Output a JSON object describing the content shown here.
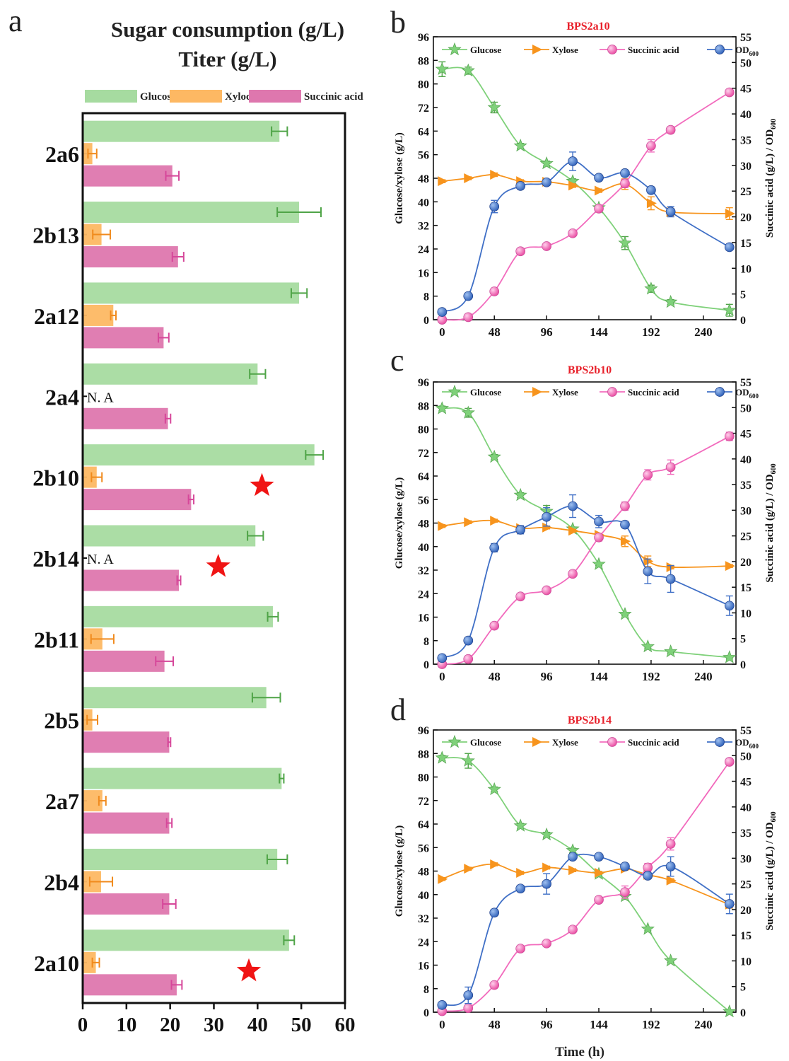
{
  "chart_data": [
    {
      "panel": "a",
      "type": "bar",
      "title_lines": [
        "Sugar consumption (g/L)",
        "Titer (g/L)"
      ],
      "xlim": [
        0,
        60
      ],
      "xticks": [
        0,
        10,
        20,
        30,
        40,
        50,
        60
      ],
      "categories": [
        "2a6",
        "2b13",
        "2a12",
        "2a4",
        "2b10",
        "2b14",
        "2b11",
        "2b5",
        "2a7",
        "2b4",
        "2a10"
      ],
      "series": [
        {
          "name": "Glucose",
          "color": "#a6dba0",
          "values": [
            45,
            49.5,
            49.5,
            40,
            53,
            39.5,
            43.5,
            42,
            45.5,
            44.5,
            47.2
          ],
          "errors": [
            1.8,
            5,
            1.8,
            1.8,
            2,
            1.8,
            1.2,
            3.2,
            0.5,
            2.3,
            1.2
          ]
        },
        {
          "name": "Xyloce",
          "color": "#fdb863",
          "values": [
            2.2,
            4.3,
            7,
            null,
            3.2,
            null,
            4.5,
            2.2,
            4.5,
            4.2,
            3
          ],
          "errors": [
            1,
            2,
            0.6,
            null,
            1.2,
            null,
            2.6,
            1.2,
            0.8,
            2.6,
            0.8
          ]
        },
        {
          "name": "Succinic acid",
          "color": "#de77ae",
          "values": [
            20.5,
            21.8,
            18.5,
            19.5,
            24.8,
            22,
            18.7,
            19.8,
            19.8,
            19.8,
            21.5
          ],
          "errors": [
            1.5,
            1.3,
            1.2,
            0.6,
            0.6,
            0.4,
            2,
            0.3,
            0.6,
            1.5,
            1.2
          ]
        }
      ],
      "na_label": "N. A",
      "na_categories": [
        "2a4",
        "2b14"
      ],
      "stars": [
        {
          "category": "2b10",
          "x": 41
        },
        {
          "category": "2b14",
          "x": 31
        },
        {
          "category": "2a10",
          "x": 38
        }
      ]
    },
    {
      "panel": "b",
      "type": "line",
      "title": "BPS2a10",
      "x": [
        0,
        24,
        48,
        72,
        96,
        120,
        144,
        168,
        192,
        210,
        264
      ],
      "xticks": [
        0,
        48,
        96,
        144,
        192,
        240
      ],
      "xlim": [
        -8,
        270
      ],
      "ylim_left": [
        0,
        96
      ],
      "yticks_left": [
        0,
        8,
        16,
        24,
        32,
        40,
        48,
        56,
        64,
        72,
        80,
        88,
        96
      ],
      "ylim_right": [
        0,
        55
      ],
      "yticks_right": [
        0,
        5,
        10,
        15,
        20,
        25,
        30,
        35,
        40,
        45,
        50,
        55
      ],
      "ylabel_left": "Glucose/xylose (g/L)",
      "ylabel_right_main": "Succinic acid (g/L) / OD",
      "ylabel_right_sub": "600",
      "series": [
        {
          "name": "Glucose",
          "marker": "star",
          "axis": "left",
          "color": "#7fd17a",
          "values": [
            85,
            84.5,
            72,
            59,
            53,
            47,
            38,
            26,
            10.5,
            6,
            3.2
          ],
          "errors": [
            2.5,
            1.2,
            1.8,
            0.8,
            0.8,
            0.8,
            0.6,
            2.2,
            1.2,
            0.8,
            2
          ]
        },
        {
          "name": "Xylose",
          "marker": "triangle",
          "axis": "left",
          "color": "#f7941d",
          "values": [
            47,
            48,
            49.2,
            47,
            46.8,
            45.5,
            43.8,
            46,
            39.5,
            36.5,
            36
          ],
          "errors": [
            0.5,
            0.5,
            0.6,
            0.5,
            0.5,
            0.6,
            0.6,
            1.8,
            2.2,
            1.2,
            2
          ]
        },
        {
          "name": "Succinic acid",
          "marker": "circle",
          "axis": "right",
          "color": "#f26bbd",
          "values": [
            0,
            0.5,
            5.5,
            13.3,
            14.3,
            16.8,
            21.6,
            26.5,
            33.8,
            36.9,
            44.2
          ],
          "errors": [
            0.2,
            0.3,
            0.3,
            0.4,
            0.4,
            0.5,
            0.6,
            0.8,
            1.2,
            0.6,
            0.6
          ]
        },
        {
          "name": "OD",
          "name_sub": "600",
          "marker": "circle",
          "axis": "right",
          "color": "#3f6fc6",
          "values": [
            1.5,
            4.6,
            22,
            26,
            26.7,
            30.8,
            27.6,
            28.5,
            25.2,
            21,
            14.1
          ],
          "errors": [
            0.2,
            0.3,
            1.2,
            0.6,
            0.4,
            1.8,
            0.5,
            0.4,
            0.6,
            1,
            0.4
          ]
        }
      ]
    },
    {
      "panel": "c",
      "type": "line",
      "title": "BPS2b10",
      "x": [
        0,
        24,
        48,
        72,
        96,
        120,
        144,
        168,
        189,
        210,
        264
      ],
      "xticks": [
        0,
        48,
        96,
        144,
        192,
        240
      ],
      "xlim": [
        -8,
        270
      ],
      "ylim_left": [
        0,
        96
      ],
      "yticks_left": [
        0,
        8,
        16,
        24,
        32,
        40,
        48,
        56,
        64,
        72,
        80,
        88,
        96
      ],
      "ylim_right": [
        0,
        55
      ],
      "yticks_right": [
        0,
        5,
        10,
        15,
        20,
        25,
        30,
        35,
        40,
        45,
        50,
        55
      ],
      "ylabel_left": "Glucose/xylose (g/L)",
      "ylabel_right_main": "Succinic acid (g/L) / OD",
      "ylabel_right_sub": "600",
      "series": [
        {
          "name": "Glucose",
          "marker": "star",
          "axis": "left",
          "color": "#7fd17a",
          "values": [
            87,
            85.5,
            70.5,
            57.5,
            52,
            46,
            34,
            17,
            6,
            4.3,
            2.3
          ],
          "errors": [
            0.8,
            1.5,
            0.8,
            0.8,
            2,
            0.5,
            0.5,
            0.5,
            0.5,
            0.5,
            0.5
          ]
        },
        {
          "name": "Xylose",
          "marker": "triangle",
          "axis": "left",
          "color": "#f7941d",
          "values": [
            47,
            48.3,
            48.8,
            46.3,
            46.5,
            45.4,
            44,
            41.8,
            35,
            33,
            33.4
          ],
          "errors": [
            0.5,
            0.5,
            0.5,
            0.5,
            0.5,
            0.5,
            0.5,
            1.8,
            1.8,
            0.6,
            0.5
          ]
        },
        {
          "name": "Succinic acid",
          "marker": "circle",
          "axis": "right",
          "color": "#f26bbd",
          "values": [
            0,
            1,
            7.5,
            13.2,
            14.4,
            17.6,
            24.7,
            30.8,
            36.9,
            38.4,
            44.4
          ],
          "errors": [
            0.2,
            0.3,
            0.4,
            0.4,
            0.4,
            0.5,
            0.7,
            0.8,
            1,
            1.4,
            0.8
          ]
        },
        {
          "name": "OD",
          "name_sub": "600",
          "marker": "circle",
          "axis": "right",
          "color": "#3f6fc6",
          "values": [
            1.2,
            4.6,
            22.7,
            26.2,
            28.7,
            30.8,
            27.8,
            27.2,
            18.1,
            16.6,
            11.4
          ],
          "errors": [
            0.2,
            0.3,
            0.8,
            0.8,
            1.8,
            2.2,
            1.2,
            0.6,
            2.4,
            2.6,
            1.9
          ]
        }
      ]
    },
    {
      "panel": "d",
      "type": "line",
      "title": "BPS2b14",
      "x": [
        0,
        24,
        48,
        72,
        96,
        120,
        144,
        168,
        189,
        210,
        264
      ],
      "xticks": [
        0,
        48,
        96,
        144,
        192,
        240
      ],
      "xlim": [
        -8,
        270
      ],
      "ylim_left": [
        0,
        96
      ],
      "yticks_left": [
        0,
        8,
        16,
        24,
        32,
        40,
        48,
        56,
        64,
        72,
        80,
        88,
        96
      ],
      "ylim_right": [
        0,
        55
      ],
      "yticks_right": [
        0,
        5,
        10,
        15,
        20,
        25,
        30,
        35,
        40,
        45,
        50,
        55
      ],
      "xlabel": "Time (h)",
      "ylabel_left": "Glucose/xylose (g/L)",
      "ylabel_right_main": "Succinic acid (g/L) / OD",
      "ylabel_right_sub": "600",
      "series": [
        {
          "name": "Glucose",
          "marker": "star",
          "axis": "left",
          "color": "#7fd17a",
          "values": [
            86.5,
            85.5,
            75.8,
            63.4,
            60.4,
            55,
            47,
            39.4,
            28.3,
            17.5,
            0.2
          ],
          "errors": [
            0.8,
            2.5,
            0.8,
            0.8,
            0.8,
            0.8,
            0.6,
            0.6,
            0.6,
            0.5,
            0.3
          ]
        },
        {
          "name": "Xylose",
          "marker": "triangle",
          "axis": "left",
          "color": "#f7941d",
          "values": [
            45.3,
            48.8,
            50.3,
            47.4,
            49.2,
            48.3,
            47.4,
            48.8,
            46.7,
            44.8,
            36.6
          ],
          "errors": [
            0.5,
            0.5,
            0.5,
            0.5,
            0.5,
            0.5,
            0.5,
            0.5,
            0.5,
            0.6,
            1.2
          ]
        },
        {
          "name": "Succinic acid",
          "marker": "circle",
          "axis": "right",
          "color": "#f26bbd",
          "values": [
            0.2,
            0.8,
            5.3,
            12.4,
            13.4,
            16.1,
            21.9,
            23.4,
            28.2,
            32.8,
            48.8
          ],
          "errors": [
            0.2,
            0.3,
            0.3,
            0.4,
            0.4,
            0.5,
            0.5,
            1.2,
            0.8,
            1.2,
            0.6
          ]
        },
        {
          "name": "OD",
          "name_sub": "600",
          "marker": "circle",
          "axis": "right",
          "color": "#3f6fc6",
          "values": [
            1.4,
            3.3,
            19.4,
            24.1,
            25,
            30.3,
            30.3,
            28.4,
            26.6,
            28.4,
            21.1
          ],
          "errors": [
            0.3,
            1.6,
            0.6,
            0.6,
            2,
            0.4,
            0.4,
            0.6,
            0.6,
            1.9,
            1.9
          ]
        }
      ]
    }
  ]
}
